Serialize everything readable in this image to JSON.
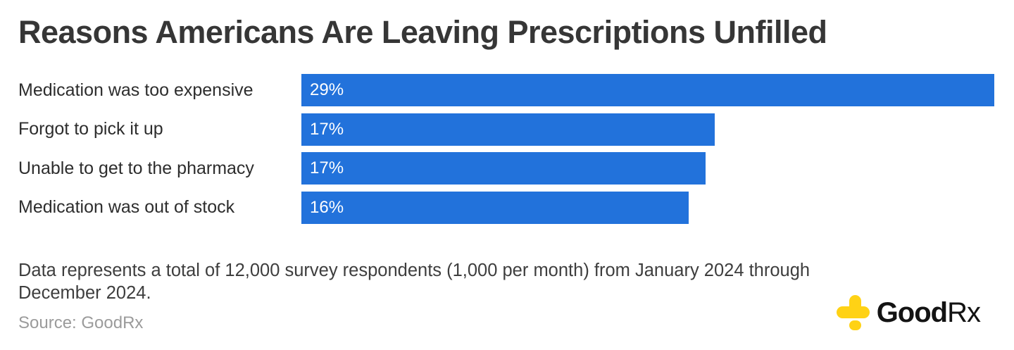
{
  "page": {
    "title": "Reasons Americans Are Leaving Prescriptions Unfilled",
    "note": "Data represents a total of 12,000 survey respondents (1,000 per month) from January 2024 through December 2024.",
    "source": "Source: GoodRx"
  },
  "logo": {
    "icon": "goodrx-plus-icon",
    "wordmark_bold": "Good",
    "wordmark_regular": "Rx"
  },
  "colors": {
    "background": "#ffffff",
    "bar": "#2272db",
    "title_text": "#363636",
    "label_text": "#2d2d2d",
    "value_text": "#ffffff",
    "note_text": "#3e3e3e",
    "source_text": "#9b9b9b",
    "logo_yellow": "#ffd215",
    "logo_black": "#131313"
  },
  "chart_data": {
    "type": "bar",
    "orientation": "horizontal",
    "title": "Reasons Americans Are Leaving Prescriptions Unfilled",
    "categories": [
      "Medication was too expensive",
      "Forgot to pick it up",
      "Unable to get to the pharmacy",
      "Medication was out of stock"
    ],
    "values": [
      29,
      17,
      17,
      16
    ],
    "value_labels": [
      "29%",
      "17%",
      "17%",
      "16%"
    ],
    "bar_width_pct": [
      100,
      59.7,
      58.3,
      55.9
    ],
    "xlim": [
      0,
      29
    ],
    "grid": false,
    "legend": false,
    "value_label_position": "inside-left",
    "bar_color": "#2272db"
  }
}
